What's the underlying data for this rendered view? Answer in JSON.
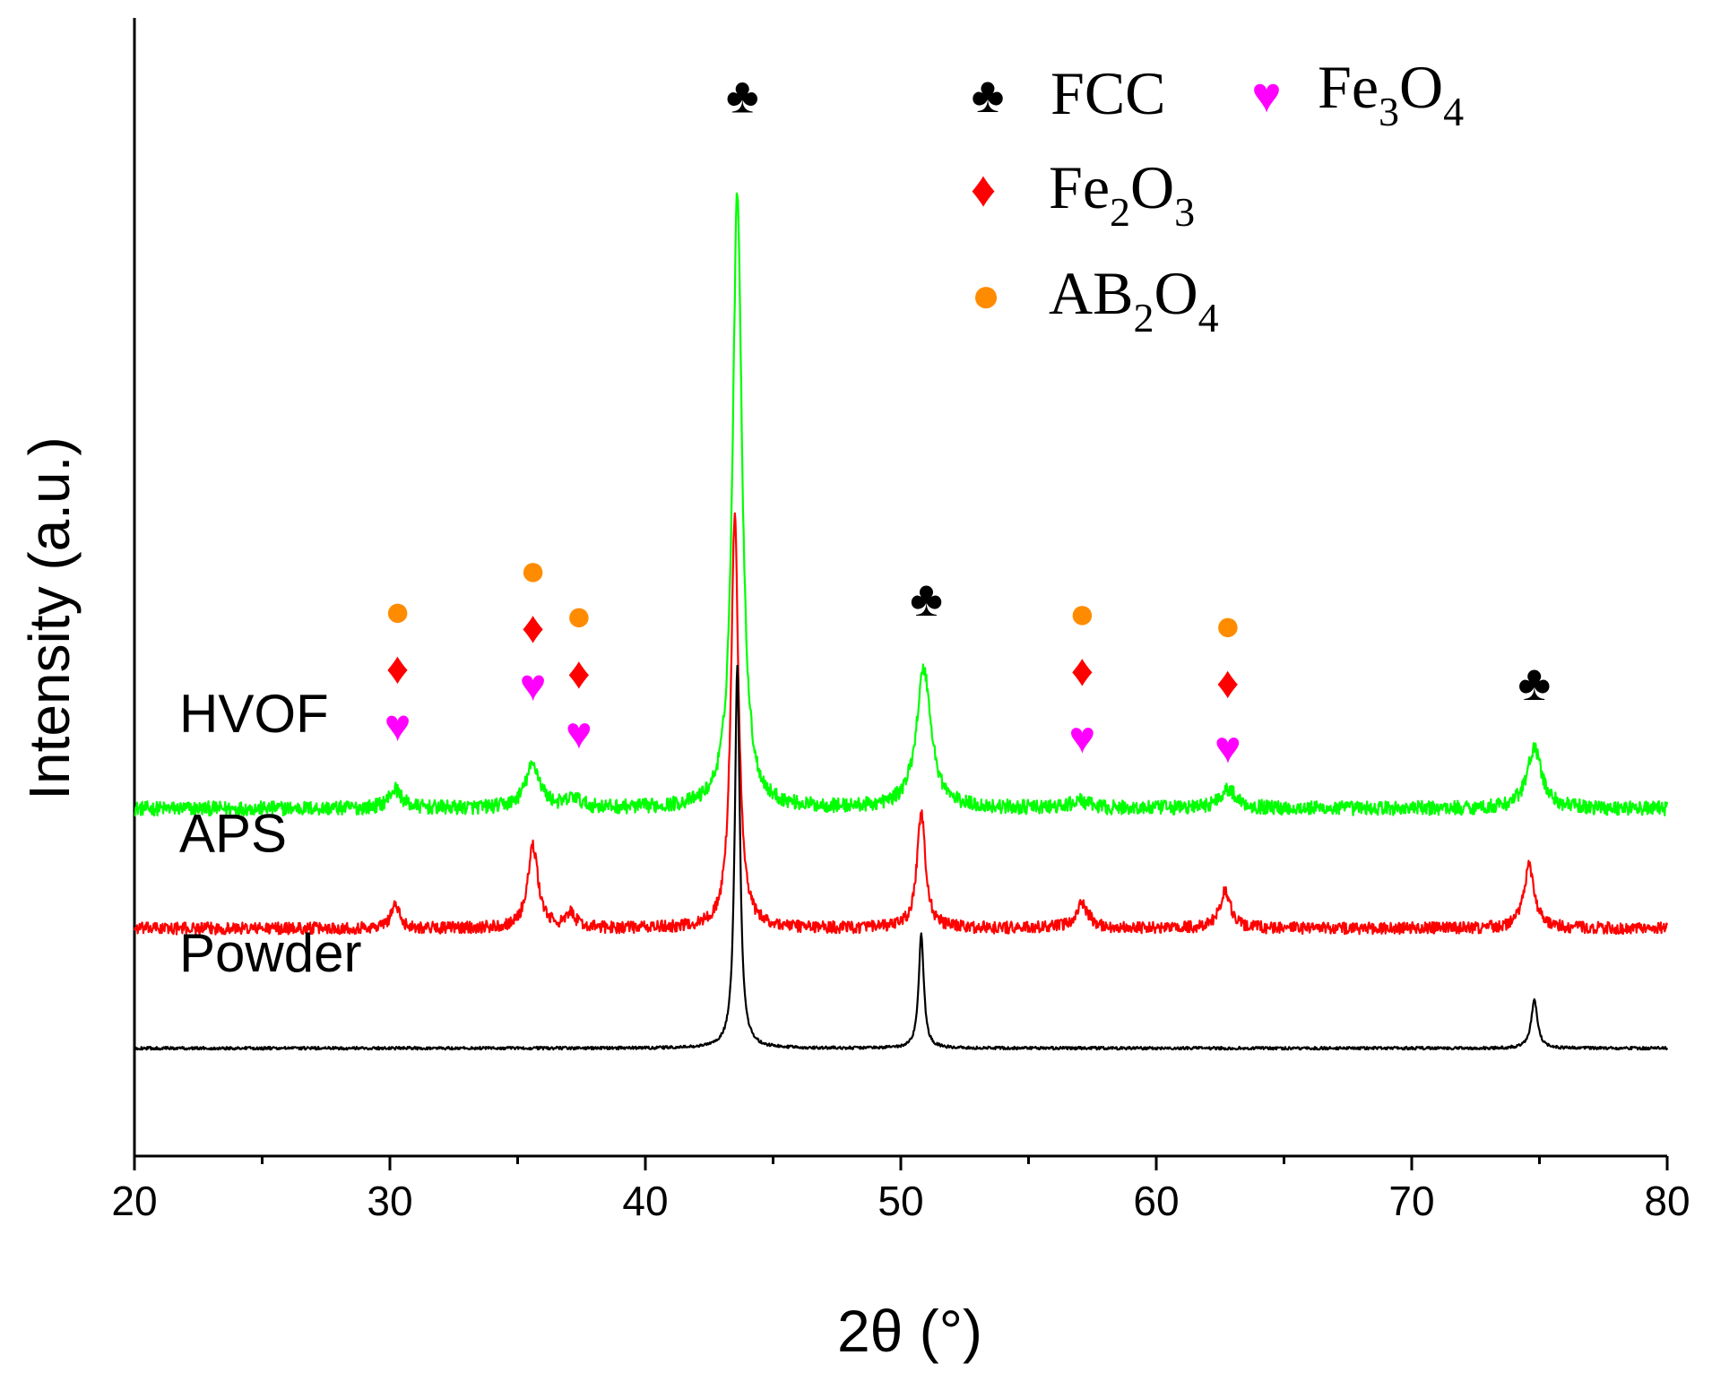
{
  "chart_data": {
    "type": "line",
    "title": "",
    "xlabel": "2θ (°)",
    "ylabel": "Intensity (a.u.)",
    "xlim": [
      20,
      80
    ],
    "ylim": [
      -0.45,
      4.3
    ],
    "x_ticks": [
      20,
      30,
      40,
      50,
      60,
      70,
      80
    ],
    "x_tick_labels": [
      "20",
      "30",
      "40",
      "50",
      "60",
      "70",
      "80"
    ],
    "y_ticks": [],
    "grid": false,
    "series": [
      {
        "name": "HVOF",
        "color": "#00ff00",
        "baseline": 1.0,
        "noise": 0.03,
        "peaks": [
          {
            "x": 30.2,
            "height": 0.08,
            "width": 0.3
          },
          {
            "x": 35.6,
            "height": 0.18,
            "width": 0.35
          },
          {
            "x": 37.2,
            "height": 0.04,
            "width": 0.3
          },
          {
            "x": 43.6,
            "height": 2.58,
            "width": 0.22
          },
          {
            "x": 50.9,
            "height": 0.58,
            "width": 0.35
          },
          {
            "x": 57.0,
            "height": 0.03,
            "width": 0.4
          },
          {
            "x": 62.8,
            "height": 0.08,
            "width": 0.4
          },
          {
            "x": 74.8,
            "height": 0.25,
            "width": 0.35
          }
        ]
      },
      {
        "name": "APS",
        "color": "#ff0000",
        "baseline": 0.5,
        "noise": 0.025,
        "peaks": [
          {
            "x": 30.2,
            "height": 0.1,
            "width": 0.2
          },
          {
            "x": 35.6,
            "height": 0.34,
            "width": 0.25
          },
          {
            "x": 37.1,
            "height": 0.06,
            "width": 0.2
          },
          {
            "x": 43.5,
            "height": 1.72,
            "width": 0.18
          },
          {
            "x": 50.8,
            "height": 0.48,
            "width": 0.2
          },
          {
            "x": 57.1,
            "height": 0.1,
            "width": 0.3
          },
          {
            "x": 62.7,
            "height": 0.16,
            "width": 0.25
          },
          {
            "x": 74.6,
            "height": 0.26,
            "width": 0.25
          }
        ]
      },
      {
        "name": "Powder",
        "color": "#000000",
        "baseline": 0.0,
        "noise": 0.006,
        "peaks": [
          {
            "x": 43.6,
            "height": 1.6,
            "width": 0.12
          },
          {
            "x": 50.8,
            "height": 0.48,
            "width": 0.12
          },
          {
            "x": 74.8,
            "height": 0.2,
            "width": 0.15
          }
        ]
      }
    ],
    "series_labels": [
      "HVOF",
      "APS",
      "Powder"
    ],
    "phase_markers": [
      {
        "phase": "FCC",
        "x": 43.8,
        "y": 3.98
      },
      {
        "phase": "FCC",
        "x": 51.0,
        "y": 1.88
      },
      {
        "phase": "FCC",
        "x": 74.8,
        "y": 1.53
      },
      {
        "phase": "AB2O4",
        "x": 30.3,
        "y": 1.83
      },
      {
        "phase": "Fe2O3",
        "x": 30.3,
        "y": 1.59
      },
      {
        "phase": "Fe3O4",
        "x": 30.3,
        "y": 1.35
      },
      {
        "phase": "AB2O4",
        "x": 35.6,
        "y": 2.0
      },
      {
        "phase": "Fe2O3",
        "x": 35.6,
        "y": 1.76
      },
      {
        "phase": "Fe3O4",
        "x": 35.6,
        "y": 1.52
      },
      {
        "phase": "AB2O4",
        "x": 37.4,
        "y": 1.81
      },
      {
        "phase": "Fe2O3",
        "x": 37.4,
        "y": 1.57
      },
      {
        "phase": "Fe3O4",
        "x": 37.4,
        "y": 1.32
      },
      {
        "phase": "AB2O4",
        "x": 57.1,
        "y": 1.82
      },
      {
        "phase": "Fe2O3",
        "x": 57.1,
        "y": 1.58
      },
      {
        "phase": "Fe3O4",
        "x": 57.1,
        "y": 1.3
      },
      {
        "phase": "AB2O4",
        "x": 62.8,
        "y": 1.77
      },
      {
        "phase": "Fe2O3",
        "x": 62.8,
        "y": 1.53
      },
      {
        "phase": "Fe3O4",
        "x": 62.8,
        "y": 1.26
      }
    ],
    "legend": {
      "placement": "top-right",
      "entries": [
        {
          "phase": "FCC",
          "base": "FCC",
          "parts": [
            {
              "t": "FCC"
            }
          ]
        },
        {
          "phase": "Fe3O4",
          "base": "Fe3O4",
          "parts": [
            {
              "t": "Fe"
            },
            {
              "t": "3",
              "sub": true
            },
            {
              "t": "O"
            },
            {
              "t": "4",
              "sub": true
            }
          ]
        },
        {
          "phase": "Fe2O3",
          "base": "Fe2O3",
          "parts": [
            {
              "t": "Fe"
            },
            {
              "t": "2",
              "sub": true
            },
            {
              "t": "O"
            },
            {
              "t": "3",
              "sub": true
            }
          ]
        },
        {
          "phase": "AB2O4",
          "base": "AB2O4",
          "parts": [
            {
              "t": "AB"
            },
            {
              "t": "2",
              "sub": true
            },
            {
              "t": "O"
            },
            {
              "t": "4",
              "sub": true
            }
          ]
        }
      ]
    },
    "marker_styles": {
      "FCC": {
        "symbol": "♣",
        "color": "#000000"
      },
      "Fe2O3": {
        "symbol": "♦",
        "color": "#ff0000"
      },
      "Fe3O4": {
        "symbol": "♥",
        "color": "#ff00ff"
      },
      "AB2O4": {
        "symbol": "●",
        "color": "#ff8c00"
      }
    }
  }
}
